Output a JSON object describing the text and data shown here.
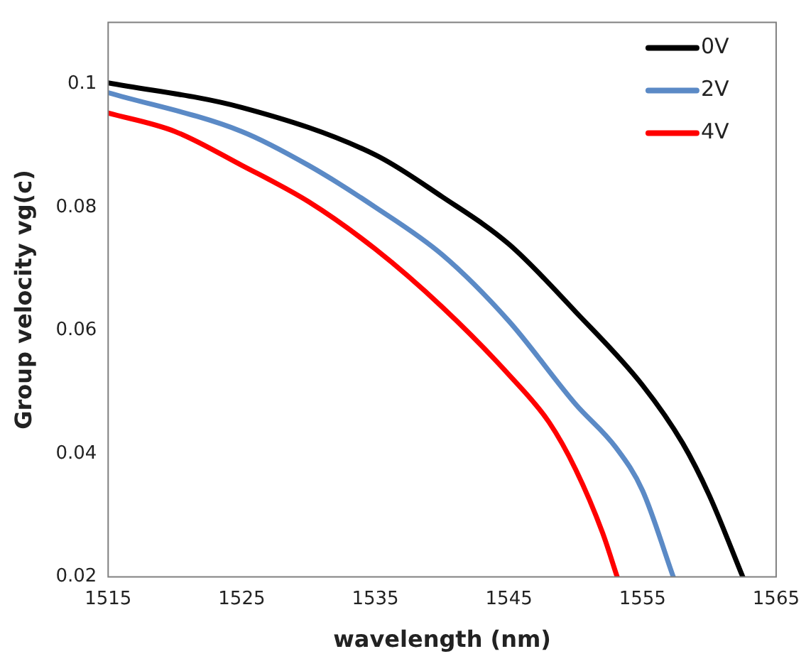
{
  "chart_data": {
    "type": "line",
    "xlabel": "wavelength (nm)",
    "ylabel": "Group velocity vg(c)",
    "xlim": [
      1515,
      1565
    ],
    "xticks": [
      1515,
      1525,
      1535,
      1545,
      1555,
      1565
    ],
    "ylim": [
      0.02,
      0.11
    ],
    "yticks": [
      0.02,
      0.04,
      0.06,
      0.08,
      0.1
    ],
    "grid": false,
    "legend": "top right",
    "marker": "none",
    "line_style": "solid",
    "series": [
      {
        "name": "0V",
        "color": "#000000",
        "x": [
          1515,
          1525,
          1535,
          1540,
          1545,
          1550,
          1555,
          1558,
          1560,
          1562.5
        ],
        "values": [
          0.1002,
          0.0962,
          0.0885,
          0.0817,
          0.074,
          0.063,
          0.0511,
          0.0417,
          0.0332,
          0.02
        ]
      },
      {
        "name": "2V",
        "color": "#5b8ac6",
        "x": [
          1515,
          1525,
          1530,
          1535,
          1540,
          1545,
          1550,
          1553,
          1555,
          1557.3
        ],
        "values": [
          0.0986,
          0.0923,
          0.0868,
          0.08,
          0.0723,
          0.0615,
          0.048,
          0.041,
          0.034,
          0.02
        ]
      },
      {
        "name": "4V",
        "color": "#ff0000",
        "x": [
          1515,
          1520,
          1525,
          1530,
          1535,
          1540,
          1545,
          1548,
          1550,
          1552,
          1553.1
        ],
        "values": [
          0.0953,
          0.0923,
          0.0868,
          0.0809,
          0.0732,
          0.0638,
          0.0528,
          0.0451,
          0.0374,
          0.0272,
          0.02
        ]
      }
    ]
  }
}
